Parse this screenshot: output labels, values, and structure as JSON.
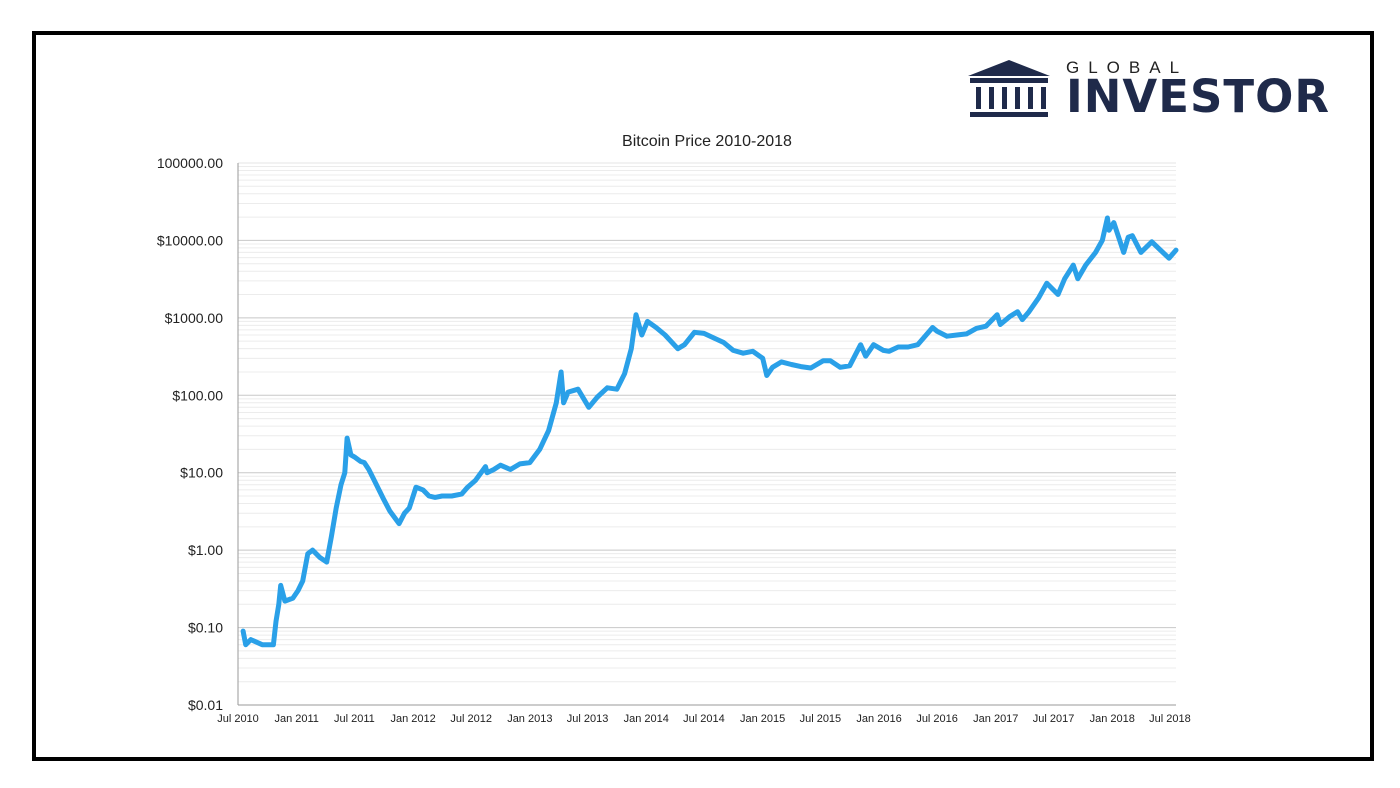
{
  "brand": {
    "name_small": "GLOBAL",
    "name_big": "INVESTOR",
    "icon": "bank-building-icon",
    "color": "#1f2a4a"
  },
  "chart_data": {
    "type": "line",
    "title": "Bitcoin Price 2010-2018",
    "xlabel": "",
    "ylabel": "",
    "yscale": "log",
    "ylim": [
      0.01,
      100000
    ],
    "xlim": [
      "2010-07-01",
      "2018-07-20"
    ],
    "grid": true,
    "y_ticks": [
      {
        "value": 0.01,
        "label": "$0.01"
      },
      {
        "value": 0.1,
        "label": "$0.10"
      },
      {
        "value": 1,
        "label": "$1.00"
      },
      {
        "value": 10,
        "label": "$10.00"
      },
      {
        "value": 100,
        "label": "$100.00"
      },
      {
        "value": 1000,
        "label": "$1000.00"
      },
      {
        "value": 10000,
        "label": "$10000.00"
      },
      {
        "value": 100000,
        "label": "100000.00"
      }
    ],
    "x_ticks": [
      {
        "value": "2010-07-01",
        "label": "Jul 2010"
      },
      {
        "value": "2011-01-01",
        "label": "Jan 2011"
      },
      {
        "value": "2011-07-01",
        "label": "Jul 2011"
      },
      {
        "value": "2012-01-01",
        "label": "Jan 2012"
      },
      {
        "value": "2012-07-01",
        "label": "Jul 2012"
      },
      {
        "value": "2013-01-01",
        "label": "Jan 2013"
      },
      {
        "value": "2013-07-01",
        "label": "Jul 2013"
      },
      {
        "value": "2014-01-01",
        "label": "Jan 2014"
      },
      {
        "value": "2014-07-01",
        "label": "Jul 2014"
      },
      {
        "value": "2015-01-01",
        "label": "Jan 2015"
      },
      {
        "value": "2015-07-01",
        "label": "Jul 2015"
      },
      {
        "value": "2016-01-01",
        "label": "Jan 2016"
      },
      {
        "value": "2016-07-01",
        "label": "Jul 2016"
      },
      {
        "value": "2017-01-01",
        "label": "Jan 2017"
      },
      {
        "value": "2017-07-01",
        "label": "Jul 2017"
      },
      {
        "value": "2018-01-01",
        "label": "Jan 2018"
      },
      {
        "value": "2018-07-01",
        "label": "Jul 2018"
      }
    ],
    "series": [
      {
        "color": "#2aa0e8",
        "points": [
          [
            "2010-07-17",
            0.09
          ],
          [
            "2010-07-25",
            0.06
          ],
          [
            "2010-08-10",
            0.07
          ],
          [
            "2010-09-15",
            0.06
          ],
          [
            "2010-10-20",
            0.06
          ],
          [
            "2010-10-28",
            0.12
          ],
          [
            "2010-11-06",
            0.2
          ],
          [
            "2010-11-12",
            0.35
          ],
          [
            "2010-11-25",
            0.22
          ],
          [
            "2010-12-20",
            0.24
          ],
          [
            "2011-01-05",
            0.3
          ],
          [
            "2011-01-20",
            0.4
          ],
          [
            "2011-02-05",
            0.9
          ],
          [
            "2011-02-20",
            1.0
          ],
          [
            "2011-03-15",
            0.8
          ],
          [
            "2011-04-05",
            0.7
          ],
          [
            "2011-04-20",
            1.5
          ],
          [
            "2011-05-05",
            3.5
          ],
          [
            "2011-05-20",
            7.0
          ],
          [
            "2011-06-01",
            10.0
          ],
          [
            "2011-06-08",
            28.0
          ],
          [
            "2011-06-20",
            17.0
          ],
          [
            "2011-07-01",
            16.0
          ],
          [
            "2011-07-20",
            14.0
          ],
          [
            "2011-08-01",
            13.5
          ],
          [
            "2011-08-15",
            11.0
          ],
          [
            "2011-09-01",
            8.0
          ],
          [
            "2011-10-01",
            4.5
          ],
          [
            "2011-10-20",
            3.2
          ],
          [
            "2011-11-18",
            2.2
          ],
          [
            "2011-12-05",
            3.0
          ],
          [
            "2011-12-20",
            3.5
          ],
          [
            "2012-01-10",
            6.5
          ],
          [
            "2012-02-01",
            6.0
          ],
          [
            "2012-02-20",
            5.0
          ],
          [
            "2012-03-10",
            4.8
          ],
          [
            "2012-04-01",
            5.0
          ],
          [
            "2012-05-01",
            5.0
          ],
          [
            "2012-06-01",
            5.3
          ],
          [
            "2012-06-20",
            6.5
          ],
          [
            "2012-07-15",
            8.0
          ],
          [
            "2012-08-15",
            12.0
          ],
          [
            "2012-08-20",
            10.0
          ],
          [
            "2012-09-10",
            11.0
          ],
          [
            "2012-10-01",
            12.5
          ],
          [
            "2012-11-01",
            11.0
          ],
          [
            "2012-12-01",
            13.0
          ],
          [
            "2013-01-01",
            13.5
          ],
          [
            "2013-02-01",
            20.0
          ],
          [
            "2013-03-01",
            35.0
          ],
          [
            "2013-03-25",
            80.0
          ],
          [
            "2013-04-09",
            200.0
          ],
          [
            "2013-04-17",
            80.0
          ],
          [
            "2013-05-01",
            110.0
          ],
          [
            "2013-06-01",
            120.0
          ],
          [
            "2013-07-05",
            70.0
          ],
          [
            "2013-08-01",
            95.0
          ],
          [
            "2013-09-01",
            125.0
          ],
          [
            "2013-10-01",
            120.0
          ],
          [
            "2013-10-25",
            190.0
          ],
          [
            "2013-11-15",
            400.0
          ],
          [
            "2013-11-30",
            1100.0
          ],
          [
            "2013-12-18",
            600.0
          ],
          [
            "2014-01-05",
            900.0
          ],
          [
            "2014-02-01",
            750.0
          ],
          [
            "2014-03-01",
            600.0
          ],
          [
            "2014-04-10",
            400.0
          ],
          [
            "2014-05-01",
            450.0
          ],
          [
            "2014-06-01",
            650.0
          ],
          [
            "2014-07-01",
            630.0
          ],
          [
            "2014-08-01",
            550.0
          ],
          [
            "2014-09-01",
            480.0
          ],
          [
            "2014-10-01",
            380.0
          ],
          [
            "2014-11-01",
            350.0
          ],
          [
            "2014-12-01",
            370.0
          ],
          [
            "2015-01-01",
            300.0
          ],
          [
            "2015-01-14",
            180.0
          ],
          [
            "2015-02-01",
            230.0
          ],
          [
            "2015-03-01",
            270.0
          ],
          [
            "2015-04-01",
            250.0
          ],
          [
            "2015-05-01",
            235.0
          ],
          [
            "2015-06-01",
            225.0
          ],
          [
            "2015-07-10",
            280.0
          ],
          [
            "2015-08-01",
            280.0
          ],
          [
            "2015-09-01",
            230.0
          ],
          [
            "2015-10-01",
            240.0
          ],
          [
            "2015-11-04",
            450.0
          ],
          [
            "2015-11-20",
            320.0
          ],
          [
            "2015-12-15",
            450.0
          ],
          [
            "2016-01-15",
            380.0
          ],
          [
            "2016-02-01",
            370.0
          ],
          [
            "2016-03-01",
            420.0
          ],
          [
            "2016-04-01",
            420.0
          ],
          [
            "2016-05-01",
            450.0
          ],
          [
            "2016-06-17",
            750.0
          ],
          [
            "2016-07-01",
            670.0
          ],
          [
            "2016-08-01",
            580.0
          ],
          [
            "2016-09-01",
            600.0
          ],
          [
            "2016-10-01",
            620.0
          ],
          [
            "2016-11-01",
            730.0
          ],
          [
            "2016-12-01",
            780.0
          ],
          [
            "2017-01-05",
            1100.0
          ],
          [
            "2017-01-15",
            820.0
          ],
          [
            "2017-02-15",
            1050.0
          ],
          [
            "2017-03-10",
            1200.0
          ],
          [
            "2017-03-25",
            950.0
          ],
          [
            "2017-04-15",
            1200.0
          ],
          [
            "2017-05-15",
            1800.0
          ],
          [
            "2017-06-10",
            2800.0
          ],
          [
            "2017-07-15",
            2000.0
          ],
          [
            "2017-08-05",
            3200.0
          ],
          [
            "2017-09-01",
            4800.0
          ],
          [
            "2017-09-15",
            3200.0
          ],
          [
            "2017-10-10",
            4800.0
          ],
          [
            "2017-11-10",
            7000.0
          ],
          [
            "2017-12-01",
            10000.0
          ],
          [
            "2017-12-17",
            19500.0
          ],
          [
            "2017-12-22",
            13500.0
          ],
          [
            "2018-01-06",
            17000.0
          ],
          [
            "2018-02-06",
            7000.0
          ],
          [
            "2018-02-20",
            11000.0
          ],
          [
            "2018-03-05",
            11500.0
          ],
          [
            "2018-04-01",
            7000.0
          ],
          [
            "2018-05-05",
            9600.0
          ],
          [
            "2018-06-01",
            7500.0
          ],
          [
            "2018-06-28",
            5900.0
          ],
          [
            "2018-07-20",
            7500.0
          ]
        ]
      }
    ]
  }
}
